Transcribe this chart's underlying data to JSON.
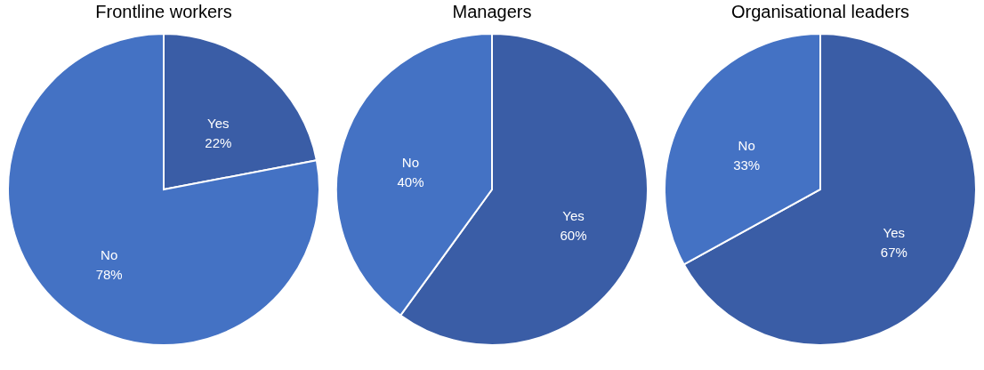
{
  "chart_data": [
    {
      "type": "pie",
      "title": "Frontline workers",
      "categories": [
        "Yes",
        "No"
      ],
      "values": [
        22,
        78
      ],
      "value_labels": [
        "22%",
        "78%"
      ],
      "colors": [
        "#3a5da6",
        "#4472c4"
      ]
    },
    {
      "type": "pie",
      "title": "Managers",
      "categories": [
        "Yes",
        "No"
      ],
      "values": [
        60,
        40
      ],
      "value_labels": [
        "60%",
        "40%"
      ],
      "colors": [
        "#3a5da6",
        "#4472c4"
      ]
    },
    {
      "type": "pie",
      "title": "Organisational leaders",
      "categories": [
        "Yes",
        "No"
      ],
      "values": [
        67,
        33
      ],
      "value_labels": [
        "67%",
        "33%"
      ],
      "colors": [
        "#3a5da6",
        "#4472c4"
      ]
    }
  ]
}
